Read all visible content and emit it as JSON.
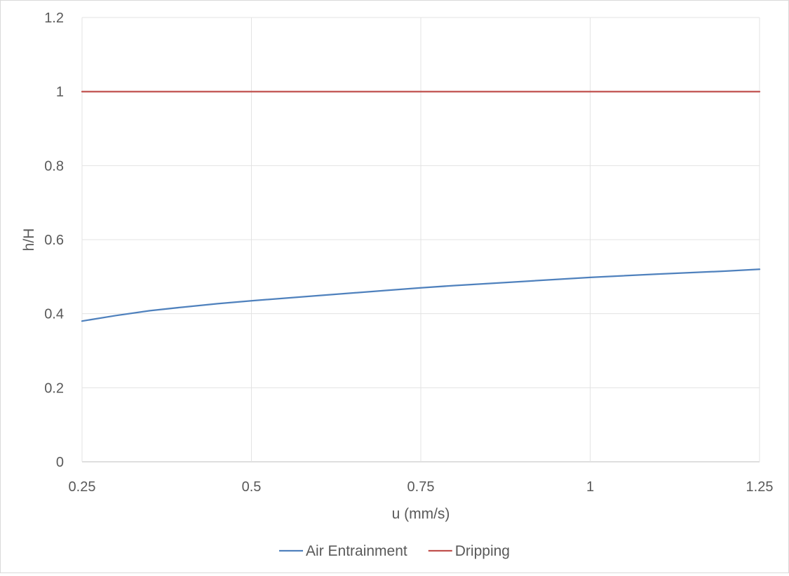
{
  "chart_data": {
    "type": "line",
    "xlabel": "u (mm/s)",
    "ylabel": "h/H",
    "xlim": [
      0.25,
      1.25
    ],
    "ylim": [
      0,
      1.2
    ],
    "x_ticks": [
      "0.25",
      "0.5",
      "0.75",
      "1",
      "1.25"
    ],
    "y_ticks": [
      "0",
      "0.2",
      "0.4",
      "0.6",
      "0.8",
      "1",
      "1.2"
    ],
    "grid": true,
    "legend_position": "bottom",
    "series": [
      {
        "name": "Air Entrainment",
        "color": "#4f81bd",
        "x": [
          0.25,
          0.3,
          0.35,
          0.4,
          0.45,
          0.5,
          0.6,
          0.7,
          0.75,
          0.8,
          0.9,
          1.0,
          1.1,
          1.2,
          1.25
        ],
        "y": [
          0.38,
          0.395,
          0.408,
          0.418,
          0.427,
          0.435,
          0.449,
          0.463,
          0.47,
          0.476,
          0.487,
          0.498,
          0.507,
          0.515,
          0.52
        ]
      },
      {
        "name": "Dripping",
        "color": "#c0504d",
        "x": [
          0.25,
          1.25
        ],
        "y": [
          1.0,
          1.0
        ]
      }
    ]
  }
}
